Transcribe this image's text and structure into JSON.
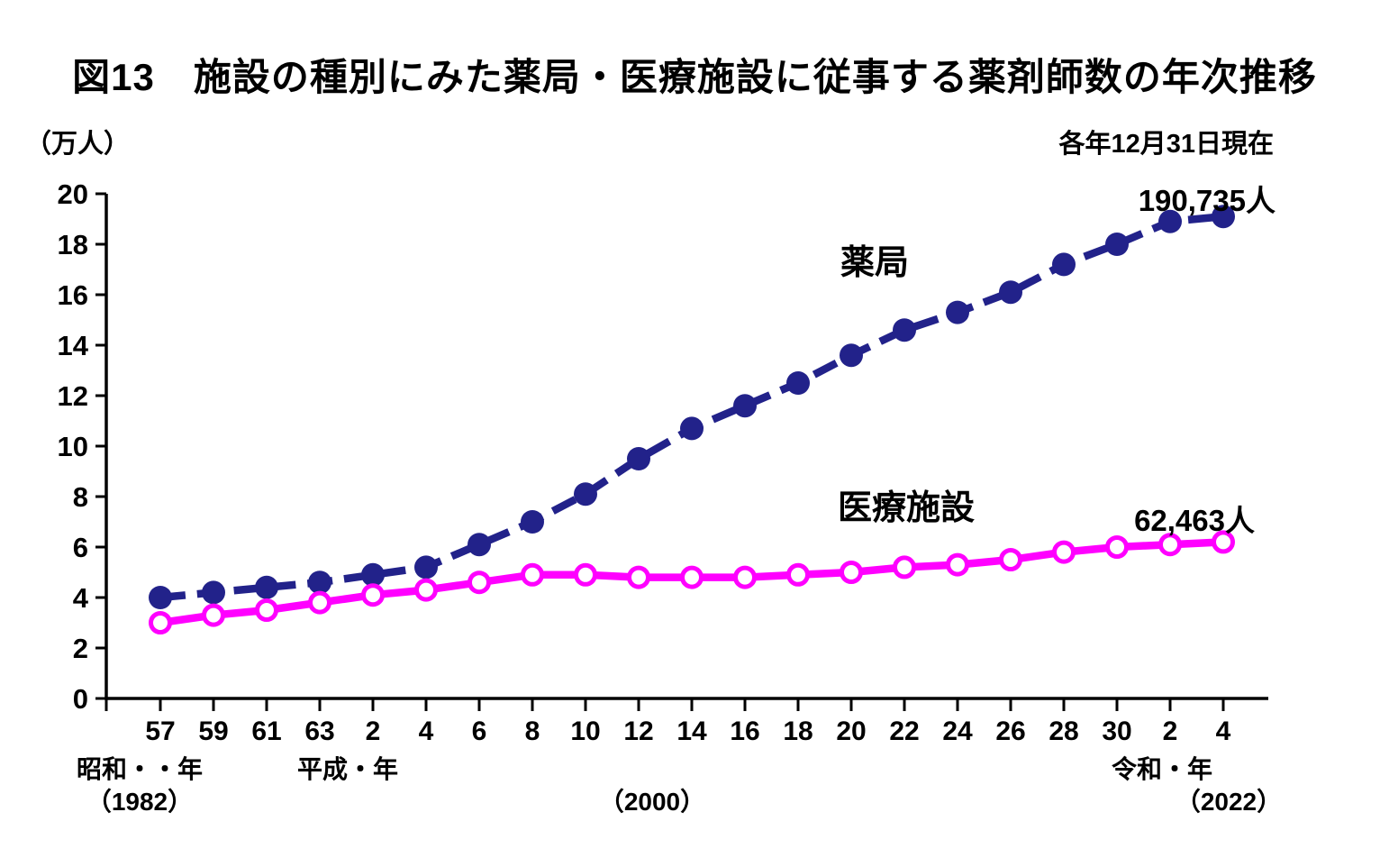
{
  "header": {
    "title": "図13　施設の種別にみた薬局・医療施設に従事する薬剤師数の年次推移",
    "unit_label": "（万人）",
    "date_note": "各年12月31日現在"
  },
  "chart_data": {
    "type": "line",
    "title": "施設の種別にみた薬局・医療施設に従事する薬剤師数の年次推移",
    "y_unit": "万人",
    "ylim": [
      0,
      20
    ],
    "y_ticks": [
      0,
      2,
      4,
      6,
      8,
      10,
      12,
      14,
      16,
      18,
      20
    ],
    "grid": "off",
    "x_tick_labels": [
      "57",
      "59",
      "61",
      "63",
      "2",
      "4",
      "6",
      "8",
      "10",
      "12",
      "14",
      "16",
      "18",
      "20",
      "22",
      "24",
      "26",
      "28",
      "30",
      "2",
      "4"
    ],
    "x_era_notes": [
      {
        "label": "昭和・・年",
        "sub": "（1982）"
      },
      {
        "label": "平成・年",
        "sub": "（2000）"
      },
      {
        "label": "令和・年",
        "sub": "（2022）"
      }
    ],
    "series": [
      {
        "name": "薬局",
        "color": "#22228A",
        "line_style": "dashed",
        "marker": "filled-circle",
        "values": [
          4.0,
          4.2,
          4.4,
          4.6,
          4.9,
          5.2,
          6.1,
          7.0,
          8.1,
          9.5,
          10.7,
          11.6,
          12.5,
          13.6,
          14.6,
          15.3,
          16.1,
          17.2,
          18.0,
          18.9,
          19.1
        ],
        "end_annotation": "190,735人"
      },
      {
        "name": "医療施設",
        "color": "#FF00FF",
        "line_style": "solid",
        "marker": "open-circle",
        "values": [
          3.0,
          3.3,
          3.5,
          3.8,
          4.1,
          4.3,
          4.6,
          4.9,
          4.9,
          4.8,
          4.8,
          4.8,
          4.9,
          5.0,
          5.2,
          5.3,
          5.5,
          5.8,
          6.0,
          6.1,
          6.2
        ],
        "end_annotation": "62,463人"
      }
    ]
  }
}
